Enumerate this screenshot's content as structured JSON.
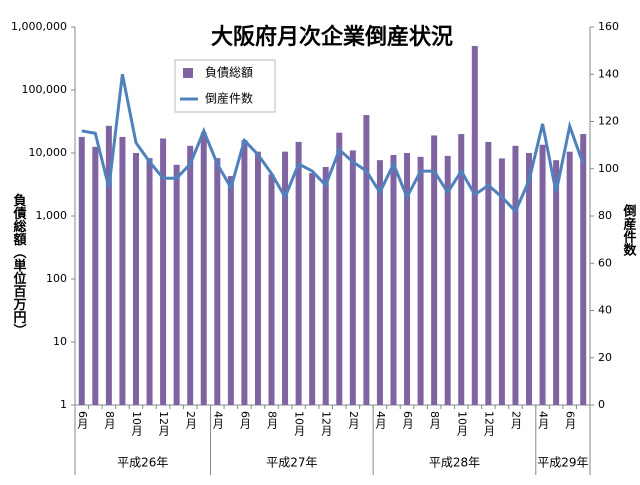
{
  "chart_data": {
    "type": "bar-line",
    "title": "大阪府月次企業倒産状況",
    "y_label": "負債総額（単位百万円）",
    "y2_label": "倒産件数",
    "categories": [
      "6月",
      null,
      "8月",
      null,
      "10月",
      null,
      "12月",
      null,
      "2月",
      null,
      "4月",
      null,
      "6月",
      null,
      "8月",
      null,
      "10月",
      null,
      "12月",
      null,
      "2月",
      null,
      "4月",
      null,
      "6月",
      null,
      "8月",
      null,
      "10月",
      null,
      "12月",
      null,
      "2月",
      null,
      "4月",
      null,
      "6月",
      null
    ],
    "groups": [
      {
        "label": "平成26年",
        "span": 10
      },
      {
        "label": "平成27年",
        "span": 12
      },
      {
        "label": "平成28年",
        "span": 12
      },
      {
        "label": "平成29年",
        "span": 4
      }
    ],
    "series": [
      {
        "name": "負債総額",
        "color": "#8064a2",
        "kind": "bar",
        "values": [
          18000,
          12500,
          27000,
          18000,
          10000,
          8300,
          17000,
          6500,
          13000,
          21000,
          8300,
          4300,
          16000,
          10500,
          4600,
          10500,
          15000,
          4800,
          6000,
          21000,
          11000,
          40000,
          7700,
          9300,
          10000,
          8700,
          19000,
          9000,
          20000,
          500000,
          15000,
          8200,
          13000,
          10000,
          13500,
          7700,
          10500,
          20000
        ]
      },
      {
        "name": "倒産件数",
        "color": "#4f81bd",
        "kind": "line",
        "axis": "y2",
        "values": [
          116,
          115,
          92,
          140,
          111,
          103,
          96,
          96,
          102,
          116,
          102,
          92,
          112,
          106,
          98,
          88,
          102,
          99,
          93,
          108,
          103,
          99,
          90,
          102,
          88,
          99,
          99,
          90,
          99,
          89,
          93,
          88,
          82,
          95,
          119,
          90,
          118,
          102
        ]
      }
    ],
    "ylog": true,
    "ylim": [
      1,
      1000000
    ],
    "yticks": [
      1,
      10,
      100,
      {
        "value": 1000,
        "label": "1,000"
      },
      {
        "value": 10000,
        "label": "10,000"
      },
      {
        "value": 100000,
        "label": "100,000"
      },
      {
        "value": 1000000,
        "label": "1,000,000"
      }
    ],
    "y2lim": [
      0,
      160
    ],
    "y2ticks": [
      0,
      20,
      40,
      60,
      80,
      100,
      120,
      140,
      160
    ],
    "legend": "top"
  }
}
